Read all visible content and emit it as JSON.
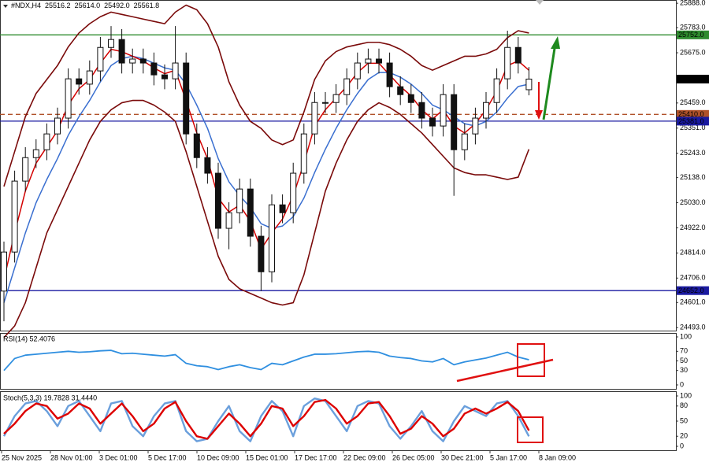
{
  "chart_data": [
    {
      "type": "candlestick",
      "title": "#NDX,H4",
      "quote": [
        "25516.2",
        "25614.0",
        "25492.0",
        "25561.8"
      ],
      "open": [
        24650,
        24818,
        25123,
        25224,
        25258,
        25326,
        25394,
        25563,
        25540,
        25597,
        25698,
        25732,
        25631,
        25648,
        25631,
        25580,
        25563,
        25631,
        25326,
        25224,
        25157,
        24920,
        24987,
        25089,
        24886,
        24733,
        25021,
        24987,
        25157,
        25326,
        25461,
        25461,
        25495,
        25563,
        25631,
        25648,
        25631,
        25529,
        25495,
        25461,
        25394,
        25360,
        25495,
        25258,
        25326,
        25394,
        25461,
        25563,
        25698,
        25516.2
      ],
      "high": [
        24863,
        25168,
        25269,
        25303,
        25371,
        25439,
        25608,
        25608,
        25642,
        25743,
        25790,
        25777,
        25693,
        25693,
        25676,
        25625,
        25790,
        25676,
        25371,
        25269,
        25202,
        25032,
        25134,
        25134,
        24931,
        25066,
        25066,
        25202,
        25371,
        25506,
        25506,
        25540,
        25608,
        25676,
        25693,
        25693,
        25676,
        25574,
        25540,
        25506,
        25439,
        25540,
        25540,
        25371,
        25439,
        25506,
        25608,
        25770,
        25743,
        25614.0
      ],
      "low": [
        24520,
        24773,
        25078,
        25179,
        25213,
        25281,
        25349,
        25495,
        25495,
        25552,
        25653,
        25586,
        25586,
        25586,
        25535,
        25518,
        25518,
        25281,
        25179,
        25112,
        24875,
        24830,
        24942,
        24841,
        24650,
        24688,
        24942,
        24942,
        25112,
        25281,
        25416,
        25416,
        25450,
        25518,
        25586,
        25586,
        25484,
        25450,
        25416,
        25349,
        25315,
        25315,
        25060,
        25213,
        25281,
        25349,
        25416,
        25518,
        25586,
        25492.0
      ],
      "close": [
        24818,
        25123,
        25224,
        25258,
        25326,
        25394,
        25563,
        25540,
        25597,
        25698,
        25732,
        25631,
        25648,
        25631,
        25580,
        25563,
        25631,
        25326,
        25224,
        25157,
        24920,
        24987,
        25089,
        24886,
        24733,
        25021,
        24987,
        25157,
        25326,
        25461,
        25461,
        25495,
        25563,
        25631,
        25648,
        25631,
        25529,
        25495,
        25461,
        25394,
        25360,
        25495,
        25258,
        25326,
        25394,
        25461,
        25563,
        25698,
        25631,
        25561.8
      ],
      "series": [
        {
          "color": "#7a0a0a",
          "values": [
            25100,
            25250,
            25400,
            25500,
            25560,
            25620,
            25700,
            25760,
            25800,
            25830,
            25850,
            25840,
            25830,
            25820,
            25810,
            25800,
            25850,
            25880,
            25860,
            25800,
            25700,
            25550,
            25450,
            25380,
            25350,
            25300,
            25280,
            25300,
            25420,
            25560,
            25640,
            25680,
            25700,
            25710,
            25720,
            25720,
            25710,
            25690,
            25660,
            25620,
            25600,
            25620,
            25640,
            25660,
            25660,
            25670,
            25690,
            25740,
            25770,
            25760
          ]
        },
        {
          "color": "#7a0a0a",
          "values": [
            24450,
            24500,
            24600,
            24750,
            24900,
            25000,
            25100,
            25200,
            25300,
            25380,
            25430,
            25460,
            25470,
            25470,
            25450,
            25420,
            25380,
            25250,
            25100,
            24950,
            24800,
            24700,
            24660,
            24640,
            24620,
            24600,
            24590,
            24600,
            24720,
            24900,
            25080,
            25200,
            25300,
            25380,
            25430,
            25460,
            25440,
            25410,
            25370,
            25330,
            25280,
            25230,
            25180,
            25160,
            25150,
            25150,
            25140,
            25130,
            25140,
            25260
          ]
        },
        {
          "color": "#3a6fd0",
          "values": [
            24600,
            24750,
            24900,
            25030,
            25130,
            25220,
            25320,
            25400,
            25470,
            25550,
            25620,
            25650,
            25660,
            25650,
            25630,
            25610,
            25600,
            25540,
            25450,
            25350,
            25220,
            25120,
            25060,
            25010,
            24940,
            24920,
            24930,
            24970,
            25050,
            25160,
            25260,
            25350,
            25430,
            25500,
            25560,
            25590,
            25590,
            25570,
            25540,
            25500,
            25450,
            25430,
            25400,
            25370,
            25360,
            25380,
            25420,
            25480,
            25530,
            25540
          ]
        },
        {
          "color": "#d40000",
          "values": [
            24700,
            24900,
            25080,
            25200,
            25270,
            25340,
            25450,
            25520,
            25560,
            25630,
            25690,
            25680,
            25660,
            25640,
            25610,
            25585,
            25600,
            25470,
            25330,
            25220,
            25050,
            24990,
            25020,
            24950,
            24830,
            24900,
            24960,
            25060,
            25200,
            25360,
            25430,
            25480,
            25530,
            25590,
            25630,
            25630,
            25580,
            25530,
            25490,
            25430,
            25390,
            25430,
            25360,
            25330,
            25370,
            25430,
            25510,
            25620,
            25640,
            25600
          ]
        }
      ],
      "levels": [
        {
          "value": 25752,
          "label": "25752.0",
          "color": "#2e8b2e",
          "style": "solid"
        },
        {
          "value": 25561.8,
          "label": "25561.8",
          "color": "#000000",
          "style": "none"
        },
        {
          "value": 25410,
          "label": "25410.0",
          "color": "#b0522a",
          "style": "dashed"
        },
        {
          "value": 25381,
          "label": "25381.0",
          "color": "#1a1aa0",
          "style": "solid"
        },
        {
          "value": 24652,
          "label": "24652.0",
          "color": "#1a1aa0",
          "style": "solid"
        }
      ],
      "ylim": [
        24480,
        25902
      ],
      "yticks": [
        {
          "value": 25888,
          "label": "25888.0"
        },
        {
          "value": 25783,
          "label": "25783.0"
        },
        {
          "value": 25675,
          "label": "25675.0"
        },
        {
          "value": 25459,
          "label": "25459.0"
        },
        {
          "value": 25351,
          "label": "25351.0"
        },
        {
          "value": 25243,
          "label": "25243.0"
        },
        {
          "value": 25138,
          "label": "25138.0"
        },
        {
          "value": 25030,
          "label": "25030.0"
        },
        {
          "value": 24922,
          "label": "24922.0"
        },
        {
          "value": 24814,
          "label": "24814.0"
        },
        {
          "value": 24706,
          "label": "24706.0"
        },
        {
          "value": 24601,
          "label": "24601.0"
        },
        {
          "value": 24493,
          "label": "24493.0"
        }
      ],
      "x_labels": [
        "25 Nov 2025",
        "28 Nov 01:00",
        "3 Dec 01:00",
        "5 Dec 17:00",
        "10 Dec 09:00",
        "15 Dec 01:00",
        "17 Dec 17:00",
        "22 Dec 09:00",
        "26 Dec 05:00",
        "30 Dec 21:00",
        "5 Jan 17:00",
        "8 Jan 09:00"
      ]
    },
    {
      "type": "line",
      "title": "RSI(14) 52.4076",
      "series": [
        {
          "color": "#2f8fe0",
          "values": [
            30,
            55,
            62,
            64,
            66,
            68,
            70,
            68,
            69,
            71,
            72,
            65,
            66,
            64,
            62,
            60,
            63,
            45,
            40,
            38,
            32,
            38,
            42,
            36,
            32,
            45,
            42,
            50,
            58,
            64,
            64,
            65,
            67,
            69,
            70,
            68,
            60,
            57,
            55,
            50,
            48,
            55,
            42,
            48,
            52,
            56,
            62,
            68,
            58,
            52.4
          ]
        }
      ],
      "ylim": [
        0,
        100
      ],
      "yticks": [
        0,
        30,
        50,
        70,
        100
      ]
    },
    {
      "type": "line",
      "title": "Stoch(5,3,3) 19.7828 31.4440",
      "series": [
        {
          "color": "#6a9fdc",
          "values": [
            20,
            60,
            85,
            90,
            70,
            40,
            80,
            90,
            60,
            30,
            85,
            90,
            40,
            20,
            60,
            85,
            90,
            30,
            10,
            15,
            50,
            80,
            30,
            10,
            60,
            90,
            70,
            20,
            80,
            95,
            90,
            60,
            30,
            80,
            90,
            85,
            40,
            15,
            40,
            70,
            30,
            10,
            50,
            80,
            70,
            60,
            85,
            90,
            60,
            19.8
          ]
        },
        {
          "color": "#dd0000",
          "values": [
            25,
            45,
            70,
            85,
            80,
            55,
            65,
            85,
            75,
            45,
            65,
            85,
            60,
            30,
            45,
            75,
            88,
            50,
            20,
            15,
            40,
            65,
            45,
            20,
            45,
            80,
            75,
            40,
            60,
            88,
            92,
            75,
            45,
            60,
            85,
            88,
            60,
            25,
            35,
            60,
            45,
            20,
            35,
            65,
            75,
            65,
            75,
            88,
            70,
            31.4
          ]
        }
      ],
      "ylim": [
        0,
        100
      ],
      "yticks": [
        0,
        20,
        50,
        80,
        100
      ]
    }
  ]
}
